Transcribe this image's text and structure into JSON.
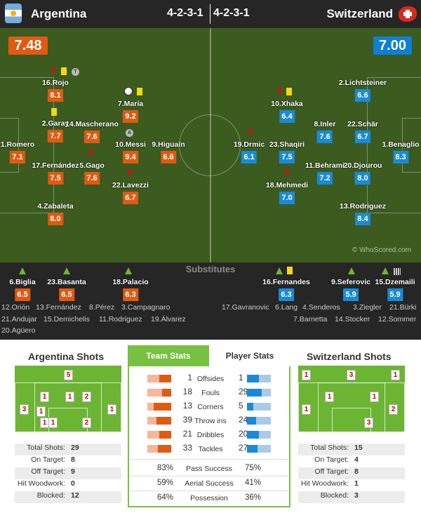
{
  "header": {
    "home_team": "Argentina",
    "away_team": "Switzerland",
    "home_formation": "4-2-3-1",
    "away_formation": "4-2-3-1"
  },
  "ratings": {
    "home": "7.48",
    "away": "7.00"
  },
  "watermark": "© WhoScored.com",
  "home_players": [
    {
      "name": "16.Rojo",
      "rating": "8.1"
    },
    {
      "name": "2.Garay",
      "rating": "7.7"
    },
    {
      "name": "1.Romero",
      "rating": "7.1"
    },
    {
      "name": "17.Fernández",
      "rating": "7.5"
    },
    {
      "name": "4.Zabaleta",
      "rating": "8.0"
    },
    {
      "name": "14.Mascherano",
      "rating": "7.6"
    },
    {
      "name": "5.Gago",
      "rating": "7.6"
    },
    {
      "name": "7.María",
      "rating": "9.2"
    },
    {
      "name": "10.Messi",
      "rating": "9.4"
    },
    {
      "name": "22.Lavezzi",
      "rating": "6.7"
    },
    {
      "name": "9.Higuaín",
      "rating": "6.6"
    }
  ],
  "away_players": [
    {
      "name": "2.Lichtsteiner",
      "rating": "6.6"
    },
    {
      "name": "22.Schär",
      "rating": "6.7"
    },
    {
      "name": "1.Benaglio",
      "rating": "8.3"
    },
    {
      "name": "20.Djourou",
      "rating": "8.0"
    },
    {
      "name": "13.Rodriguez",
      "rating": "8.4"
    },
    {
      "name": "8.Inler",
      "rating": "7.6"
    },
    {
      "name": "11.Behrami",
      "rating": "7.2"
    },
    {
      "name": "10.Xhaka",
      "rating": "6.4"
    },
    {
      "name": "23.Shaqiri",
      "rating": "7.5"
    },
    {
      "name": "18.Mehmedi",
      "rating": "7.0"
    },
    {
      "name": "19.Drmic",
      "rating": "6.1"
    }
  ],
  "icons": {
    "home_captain": "A",
    "home_tag": "T"
  },
  "substitutes": {
    "title": "Substitutes",
    "home_used": [
      {
        "name": "6.Biglia",
        "rating": "6.5"
      },
      {
        "name": "23.Basanta",
        "rating": "6.5"
      },
      {
        "name": "18.Palacio",
        "rating": "6.3"
      }
    ],
    "away_used": [
      {
        "name": "16.Fernandes",
        "rating": "6.3"
      },
      {
        "name": "9.Seferovic",
        "rating": "5.9"
      },
      {
        "name": "15.Dzemaili",
        "rating": "5.9"
      }
    ],
    "home_bench": [
      [
        "12.Orión",
        "13.Fernández",
        "8.Pérez",
        "3.Campagnaro"
      ],
      [
        "21.Andujar",
        "15.Demichelis",
        "11.Rodriguez",
        "19.Álvarez"
      ],
      [
        "20.Agüero"
      ]
    ],
    "away_bench": [
      [
        "17.Gavranovic",
        "6.Lang",
        "4.Senderos",
        "3.Ziegler",
        "21.Bürki"
      ],
      [
        "7.Barnetta",
        "14.Stocker",
        "12.Sommer"
      ]
    ]
  },
  "home_shots": {
    "title": "Argentina Shots",
    "map": [
      "5",
      "3",
      "1",
      "1",
      "2",
      "1",
      "1",
      "2",
      "1",
      "1"
    ],
    "summary": [
      {
        "label": "Total Shots:",
        "value": "29"
      },
      {
        "label": "On Target:",
        "value": "8"
      },
      {
        "label": "Off Target:",
        "value": "9"
      },
      {
        "label": "Hit Woodwork:",
        "value": "0"
      },
      {
        "label": "Blocked:",
        "value": "12"
      }
    ]
  },
  "away_shots": {
    "title": "Switzerland Shots",
    "map": [
      "1",
      "3",
      "1",
      "1",
      "1",
      "2",
      "1",
      "3"
    ],
    "summary": [
      {
        "label": "Total Shots:",
        "value": "15"
      },
      {
        "label": "On Target:",
        "value": "4"
      },
      {
        "label": "Off Target:",
        "value": "8"
      },
      {
        "label": "Hit Woodwork:",
        "value": "1"
      },
      {
        "label": "Blocked:",
        "value": "3"
      }
    ]
  },
  "team_stats": {
    "tab_team": "Team Stats",
    "tab_player": "Player Stats",
    "rows": [
      {
        "name": "Offsides",
        "home": 1,
        "away": 1
      },
      {
        "name": "Fouls",
        "home": 18,
        "away": 29
      },
      {
        "name": "Corners",
        "home": 13,
        "away": 5
      },
      {
        "name": "Throw ins",
        "home": 39,
        "away": 24
      },
      {
        "name": "Dribbles",
        "home": 21,
        "away": 20
      },
      {
        "name": "Tackles",
        "home": 33,
        "away": 27
      }
    ],
    "percent_rows": [
      {
        "name": "Pass Success",
        "home": "83%",
        "away": "75%"
      },
      {
        "name": "Aerial Success",
        "home": "59%",
        "away": "41%"
      },
      {
        "name": "Possession",
        "home": "64%",
        "away": "36%"
      }
    ]
  },
  "colors": {
    "home": "#e05a12",
    "away": "#1a8ad8",
    "pitch": "#3b5b1f",
    "panel_green": "#78c040"
  }
}
